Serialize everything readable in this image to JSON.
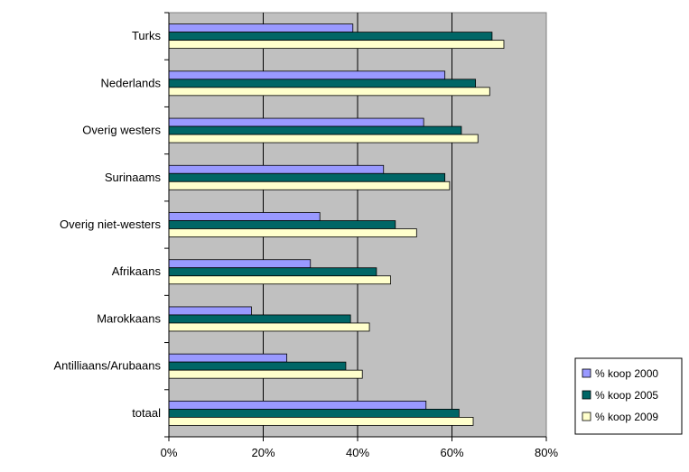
{
  "chart_data": {
    "type": "bar",
    "orientation": "horizontal",
    "categories": [
      "Turks",
      "Nederlands",
      "Overig westers",
      "Surinaams",
      "Overig niet-westers",
      "Afrikaans",
      "Marokkaans",
      "Antilliaans/Arubaans",
      "totaal"
    ],
    "series": [
      {
        "name": "% koop 2000",
        "color": "#9999ff",
        "values": [
          39,
          58.5,
          54,
          45.5,
          32,
          30,
          17.5,
          25,
          54.5
        ]
      },
      {
        "name": "% koop 2005",
        "color": "#006666",
        "values": [
          68.5,
          65,
          62,
          58.5,
          48,
          44,
          38.5,
          37.5,
          61.5
        ]
      },
      {
        "name": "% koop 2009",
        "color": "#ffffcc",
        "values": [
          71,
          68,
          65.5,
          59.5,
          52.5,
          47,
          42.5,
          41,
          64.5
        ]
      }
    ],
    "xlim": [
      0,
      80
    ],
    "x_tick_labels": [
      "0%",
      "20%",
      "40%",
      "60%",
      "80%"
    ],
    "gridlines": true,
    "plot_background": "#c0c0c0",
    "legend_position": "bottom-right",
    "title": "",
    "xlabel": "",
    "ylabel": ""
  }
}
